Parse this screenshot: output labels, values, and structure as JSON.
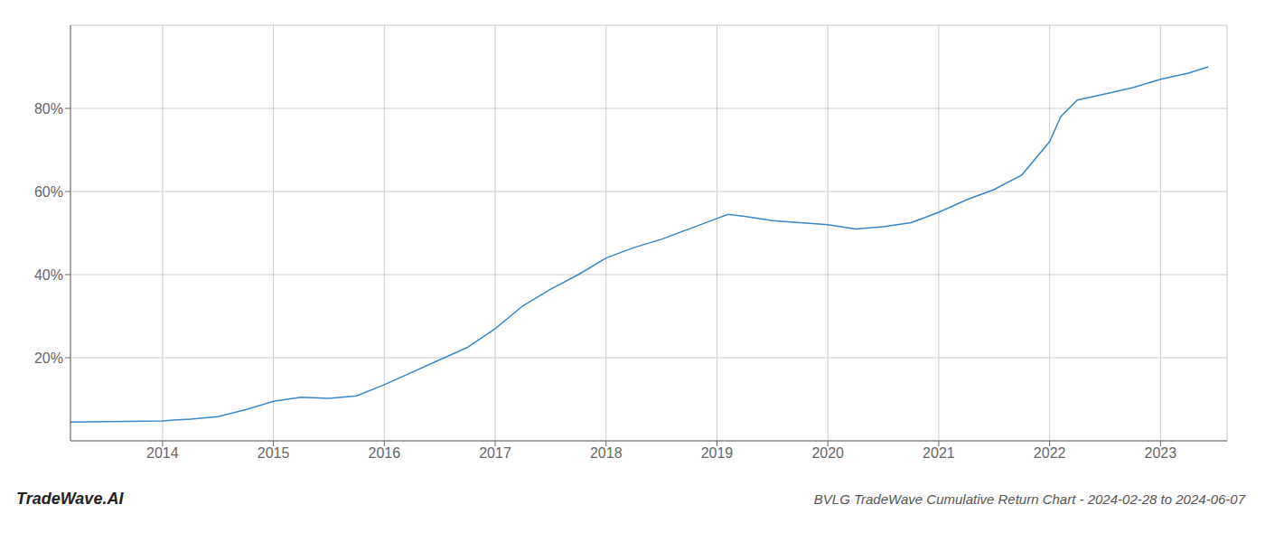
{
  "chart_data": {
    "type": "line",
    "title": "BVLG TradeWave Cumulative Return Chart - 2024-02-28 to 2024-06-07",
    "annotations": [
      "TradeWave.AI"
    ],
    "x": [
      2013.17,
      2014.0,
      2014.1,
      2014.25,
      2014.5,
      2014.75,
      2015.0,
      2015.25,
      2015.5,
      2015.75,
      2016.0,
      2016.25,
      2016.5,
      2016.75,
      2017.0,
      2017.25,
      2017.5,
      2017.75,
      2018.0,
      2018.25,
      2018.5,
      2018.75,
      2019.0,
      2019.1,
      2019.25,
      2019.5,
      2019.75,
      2020.0,
      2020.25,
      2020.5,
      2020.75,
      2021.0,
      2021.25,
      2021.5,
      2021.75,
      2022.0,
      2022.1,
      2022.25,
      2022.5,
      2022.75,
      2023.0,
      2023.25,
      2023.43
    ],
    "values": [
      4.5,
      4.8,
      5.0,
      5.2,
      5.8,
      7.5,
      9.5,
      10.5,
      10.2,
      10.8,
      13.5,
      16.5,
      19.5,
      22.5,
      27.0,
      32.5,
      36.5,
      40.0,
      44.0,
      46.5,
      48.5,
      51.0,
      53.5,
      54.5,
      54.0,
      53.0,
      52.5,
      52.0,
      51.0,
      51.5,
      52.5,
      55.0,
      58.0,
      60.5,
      64.0,
      72.0,
      78.0,
      82.0,
      83.5,
      85.0,
      87.0,
      88.5,
      90.0
    ],
    "color": "#3a87c8",
    "xlim": [
      2013.17,
      2023.6
    ],
    "xticks": [
      2014,
      2015,
      2016,
      2017,
      2018,
      2019,
      2020,
      2021,
      2022,
      2023
    ],
    "ylim": [
      0,
      100
    ],
    "yticks": [
      {
        "value": 20,
        "label": "20%"
      },
      {
        "value": 40,
        "label": "40%"
      },
      {
        "value": 60,
        "label": "60%"
      },
      {
        "value": 80,
        "label": "80%"
      }
    ],
    "grid": true
  }
}
